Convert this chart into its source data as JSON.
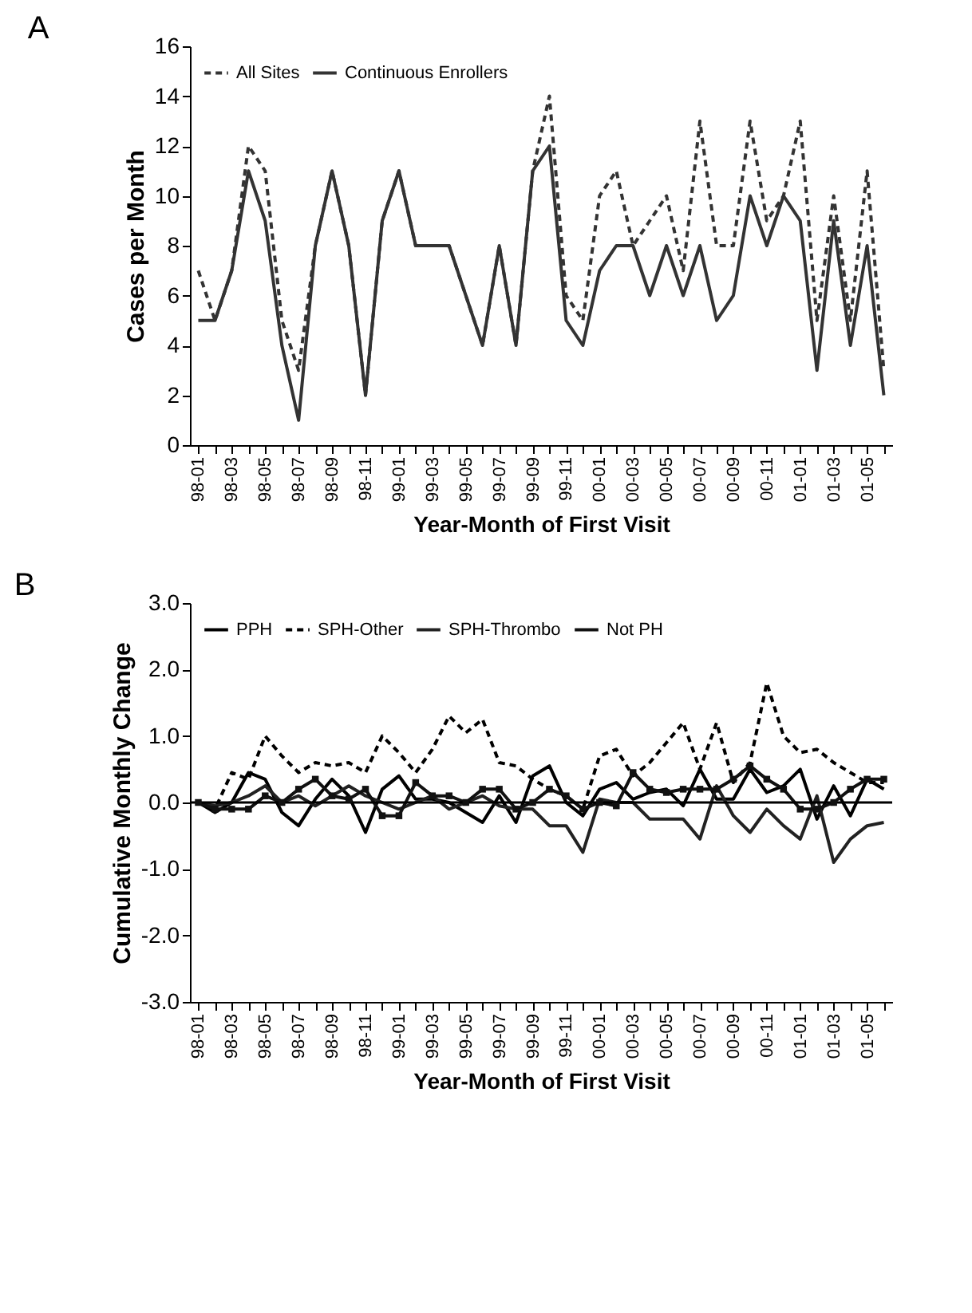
{
  "chart_data": [
    {
      "type": "line",
      "title": "A",
      "xlabel": "Year-Month of First Visit",
      "ylabel": "Cases per Month",
      "legend": "top left",
      "grid": false,
      "categories": [
        "98-01",
        null,
        "98-03",
        null,
        "98-05",
        null,
        "98-07",
        null,
        "98-09",
        null,
        "98-11",
        null,
        "99-01",
        null,
        "99-03",
        null,
        "99-05",
        null,
        "99-07",
        null,
        "99-09",
        null,
        "99-11",
        null,
        "00-01",
        null,
        "00-03",
        null,
        "00-05",
        null,
        "00-07",
        null,
        "00-09",
        null,
        "00-11",
        null,
        "01-01",
        null,
        "01-03",
        null,
        "01-05",
        null
      ],
      "ylim": [
        0,
        16
      ],
      "yticks": [
        0,
        2,
        4,
        6,
        8,
        10,
        12,
        14,
        16
      ],
      "series": [
        {
          "name": "All Sites",
          "color": "#333333",
          "line_style": "dashed",
          "values": [
            7,
            5,
            7,
            12,
            11,
            5,
            3,
            8,
            11,
            8,
            2,
            9,
            11,
            8,
            8,
            8,
            6,
            4,
            8,
            4,
            11,
            14,
            6,
            5,
            10,
            11,
            8,
            9,
            10,
            7,
            13,
            8,
            8,
            13,
            9,
            10,
            13,
            5,
            10,
            5,
            11,
            3
          ]
        },
        {
          "name": "Continuous Enrollers",
          "color": "#333333",
          "line_style": "solid",
          "values": [
            5,
            5,
            7,
            11,
            9,
            4,
            1,
            8,
            11,
            8,
            2,
            9,
            11,
            8,
            8,
            8,
            6,
            4,
            8,
            4,
            11,
            12,
            5,
            4,
            7,
            8,
            8,
            6,
            8,
            6,
            8,
            5,
            6,
            10,
            8,
            10,
            9,
            3,
            9,
            4,
            8,
            2
          ]
        }
      ]
    },
    {
      "type": "line",
      "title": "B",
      "xlabel": "Year-Month of First Visit",
      "ylabel": "Cumulative Monthly Change",
      "legend": "top left",
      "grid": false,
      "categories": [
        "98-01",
        null,
        "98-03",
        null,
        "98-05",
        null,
        "98-07",
        null,
        "98-09",
        null,
        "98-11",
        null,
        "99-01",
        null,
        "99-03",
        null,
        "99-05",
        null,
        "99-07",
        null,
        "99-09",
        null,
        "99-11",
        null,
        "00-01",
        null,
        "00-03",
        null,
        "00-05",
        null,
        "00-07",
        null,
        "00-09",
        null,
        "00-11",
        null,
        "01-01",
        null,
        "01-03",
        null,
        "01-05",
        null
      ],
      "ylim": [
        -3,
        3
      ],
      "yticks": [
        {
          "value": -3,
          "label": "-3.0"
        },
        {
          "value": -2,
          "label": "-2.0"
        },
        {
          "value": -1,
          "label": "-1.0"
        },
        {
          "value": 0,
          "label": "0.0"
        },
        {
          "value": 1,
          "label": "1.0"
        },
        {
          "value": 2,
          "label": "2.0"
        },
        {
          "value": 3,
          "label": "3.0"
        }
      ],
      "ref_lines": [
        {
          "axis": "y",
          "value": 0,
          "label": null,
          "color": "#000000"
        }
      ],
      "series": [
        {
          "name": "PPH",
          "color": "#000000",
          "line_style": "solid",
          "values": [
            0,
            -0.15,
            0,
            0.45,
            0.35,
            -0.15,
            -0.35,
            0.05,
            0.35,
            0.1,
            -0.45,
            0.2,
            0.4,
            0.05,
            0.05,
            0,
            -0.15,
            -0.3,
            0.1,
            -0.3,
            0.4,
            0.55,
            0,
            -0.2,
            0.2,
            0.3,
            0.05,
            0.15,
            0.2,
            -0.05,
            0.5,
            0.05,
            0.05,
            0.5,
            0.15,
            0.25,
            0.5,
            -0.25,
            0.25,
            -0.2,
            0.35,
            0.2
          ]
        },
        {
          "name": "SPH-Other",
          "color": "#000000",
          "line_style": "dashed",
          "values": [
            0,
            -0.1,
            0.45,
            0.35,
            1,
            0.7,
            0.45,
            0.6,
            0.55,
            0.6,
            0.45,
            1,
            0.75,
            0.45,
            0.8,
            1.3,
            1.05,
            1.25,
            0.6,
            0.55,
            0.35,
            0.2,
            0.1,
            -0.1,
            0.7,
            0.8,
            0.4,
            0.6,
            0.9,
            1.2,
            0.5,
            1.2,
            0.3,
            0.6,
            1.8,
            1,
            0.75,
            0.8,
            0.6,
            0.45,
            0.3,
            0.3
          ]
        },
        {
          "name": "SPH-Thrombo",
          "color": "#222222",
          "line_style": "solid",
          "values": [
            0,
            -0.05,
            0,
            0.1,
            0.25,
            0,
            0.1,
            -0.05,
            0.1,
            0.25,
            0.1,
            0,
            -0.1,
            0,
            0.1,
            -0.1,
            0,
            0.1,
            -0.05,
            -0.1,
            -0.1,
            -0.35,
            -0.35,
            -0.75,
            0.05,
            0,
            0,
            -0.25,
            -0.25,
            -0.25,
            -0.55,
            0.25,
            -0.2,
            -0.45,
            -0.1,
            -0.35,
            -0.55,
            0.1,
            -0.9,
            -0.55,
            -0.35,
            -0.3
          ]
        },
        {
          "name": "Not PH",
          "color": "#111111",
          "line_style": "solid",
          "marker": "square",
          "values": [
            0,
            -0.1,
            -0.1,
            -0.1,
            0.1,
            0,
            0.2,
            0.35,
            0.1,
            0.05,
            0.2,
            -0.2,
            -0.2,
            0.3,
            0.1,
            0.1,
            0,
            0.2,
            0.2,
            -0.1,
            0,
            0.2,
            0.1,
            -0.1,
            0,
            -0.05,
            0.45,
            0.2,
            0.15,
            0.2,
            0.2,
            0.2,
            0.35,
            0.55,
            0.35,
            0.2,
            -0.1,
            -0.1,
            0,
            0.2,
            0.35,
            0.35
          ]
        }
      ]
    }
  ]
}
